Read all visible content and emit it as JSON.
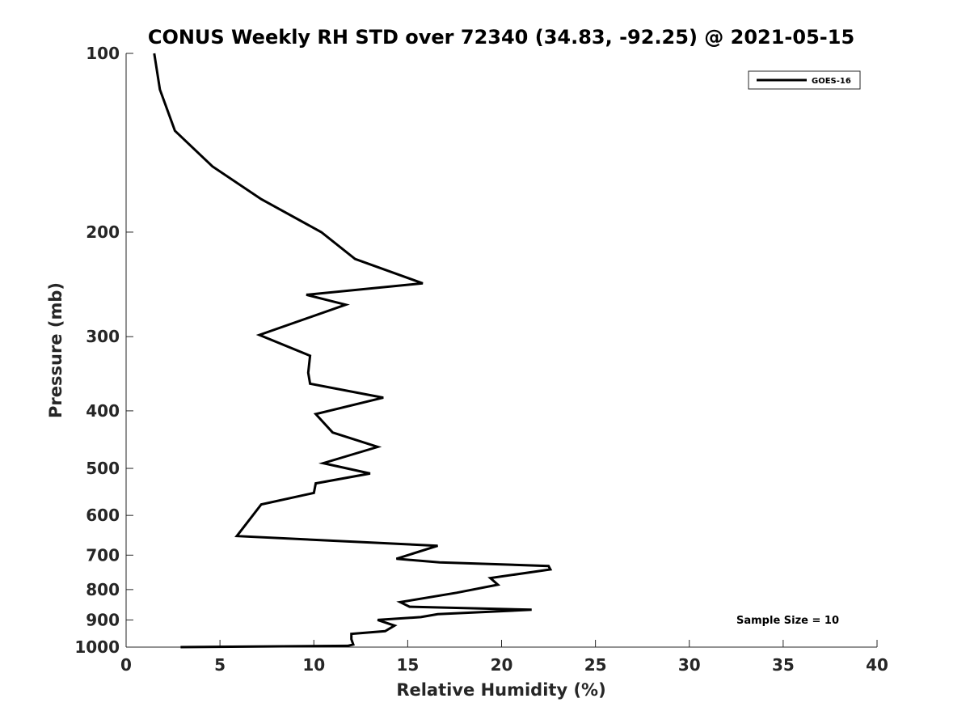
{
  "chart_data": {
    "type": "line",
    "title": "CONUS Weekly RH STD over 72340 (34.83, -92.25) @ 2021-05-15",
    "xlabel": "Relative Humidity (%)",
    "ylabel": "Pressure (mb)",
    "xlim": [
      0,
      40
    ],
    "ylim": [
      100,
      1000
    ],
    "yscale": "log",
    "y_reversed": true,
    "xticks": [
      0,
      5,
      10,
      15,
      20,
      25,
      30,
      35,
      40
    ],
    "yticks": [
      100,
      200,
      300,
      400,
      500,
      600,
      700,
      800,
      900,
      1000
    ],
    "grid": false,
    "legend_position": "top-right",
    "annotation": "Sample Size = 10",
    "series": [
      {
        "name": "GOES-16",
        "color": "#000000",
        "x": [
          1.5,
          1.8,
          2.6,
          4.6,
          7.2,
          10.4,
          12.2,
          15.8,
          9.6,
          11.7,
          7.1,
          9.8,
          9.7,
          9.8,
          13.7,
          10.1,
          11.0,
          13.4,
          10.5,
          13.0,
          10.1,
          10.0,
          7.2,
          5.9,
          16.6,
          14.4,
          16.7,
          22.5,
          22.6,
          19.4,
          19.8,
          17.6,
          14.6,
          15.1,
          21.6,
          16.6,
          15.7,
          13.4,
          14.3,
          13.8,
          12.0,
          12.0,
          12.1,
          11.8,
          2.9
        ],
        "y": [
          100,
          115,
          135,
          155,
          176,
          200,
          222,
          244,
          255,
          265,
          298,
          323,
          345,
          360,
          380,
          405,
          435,
          460,
          490,
          510,
          530,
          550,
          575,
          650,
          675,
          710,
          720,
          730,
          740,
          765,
          785,
          810,
          840,
          855,
          865,
          880,
          890,
          900,
          920,
          940,
          950,
          970,
          990,
          995,
          1000
        ]
      }
    ]
  }
}
